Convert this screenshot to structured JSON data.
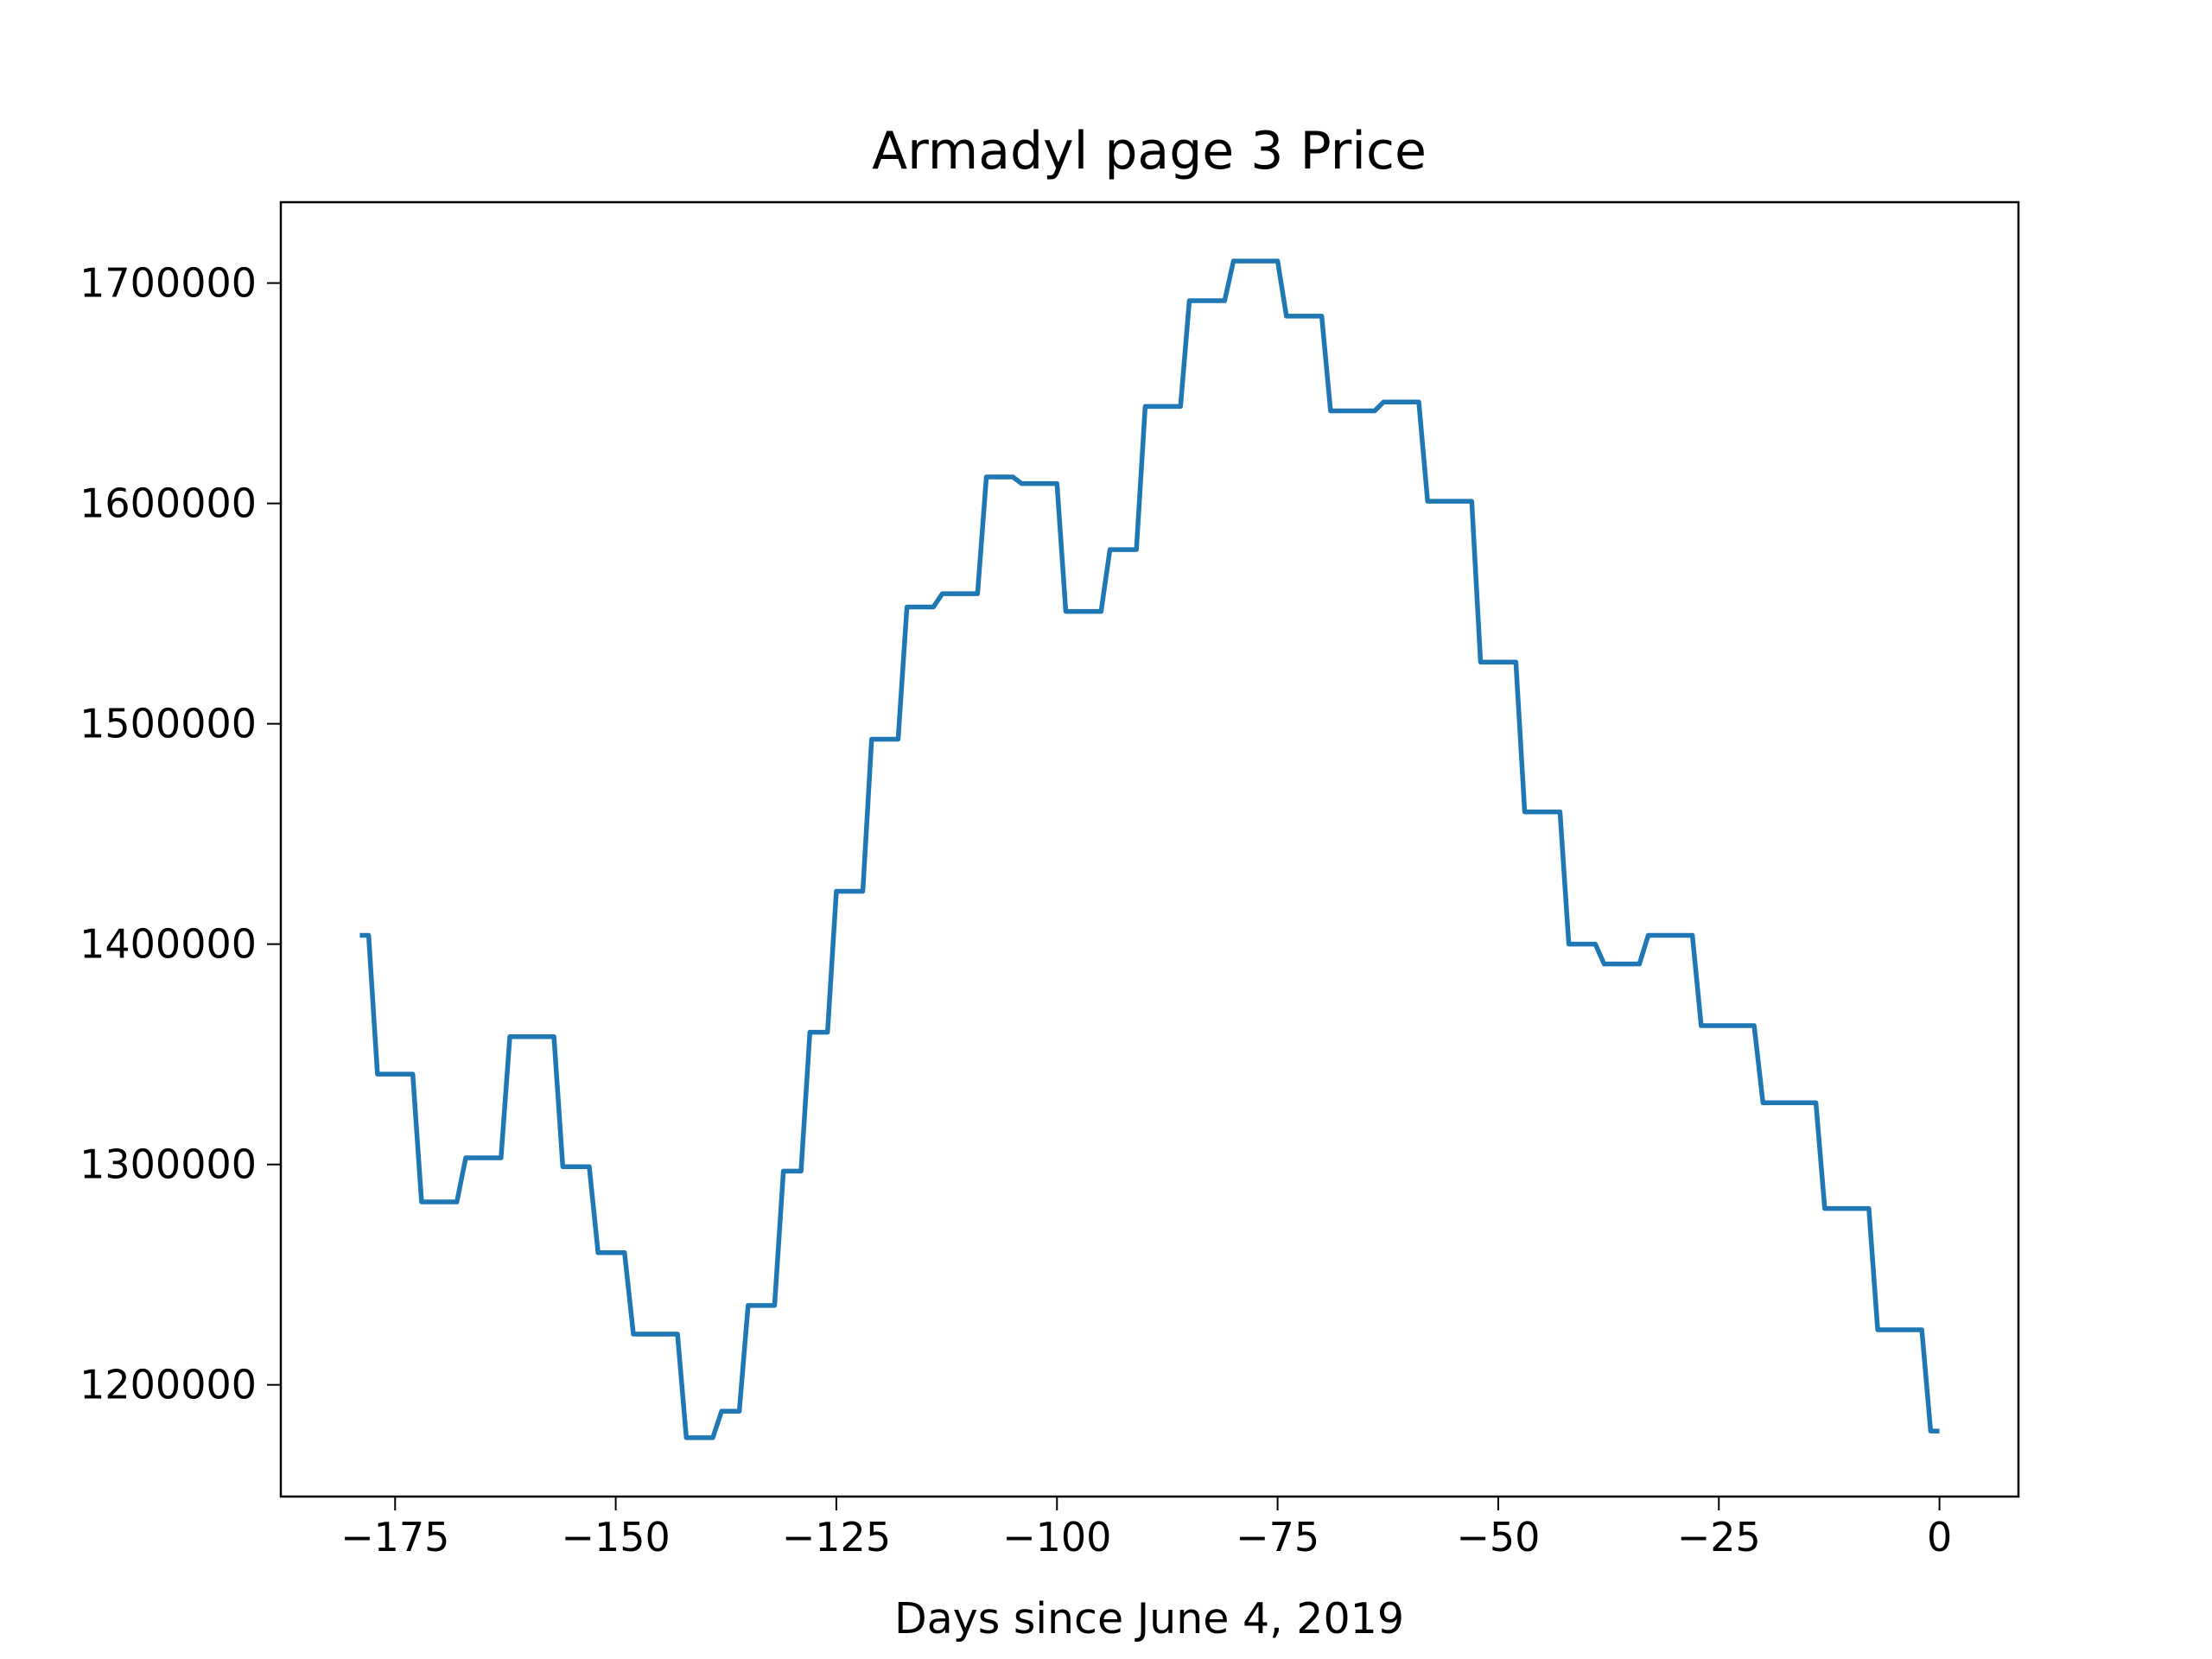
{
  "chart_data": {
    "type": "line",
    "title": "Armadyl page 3 Price",
    "x_label": "Days since June 4, 2019",
    "x": [
      -179,
      -178,
      -177,
      -173,
      -172,
      -168,
      -167,
      -163,
      -162,
      -157,
      -156,
      -153,
      -152,
      -149,
      -148,
      -143,
      -142,
      -139,
      -138,
      -136,
      -135,
      -132,
      -131,
      -129,
      -128,
      -126,
      -125,
      -122,
      -121,
      -118,
      -117,
      -114,
      -113,
      -109,
      -108,
      -105,
      -104,
      -100,
      -99,
      -95,
      -94,
      -91,
      -90,
      -86,
      -85,
      -81,
      -80,
      -75,
      -74,
      -70,
      -69,
      -64,
      -63,
      -59,
      -58,
      -53,
      -52,
      -48,
      -47,
      -43,
      -42,
      -39,
      -38,
      -34,
      -33,
      -28,
      -27,
      -21,
      -20,
      -14,
      -13,
      -8,
      -7,
      -2,
      -1,
      0
    ],
    "series": [
      {
        "name": "Price",
        "color": "#1f77b4",
        "values": [
          1404000,
          1404000,
          1341000,
          1341000,
          1283000,
          1283000,
          1303000,
          1303000,
          1358000,
          1358000,
          1299000,
          1299000,
          1260000,
          1260000,
          1223000,
          1223000,
          1176000,
          1176000,
          1188000,
          1188000,
          1236000,
          1236000,
          1297000,
          1297000,
          1360000,
          1360000,
          1424000,
          1424000,
          1493000,
          1493000,
          1553000,
          1553000,
          1559000,
          1559000,
          1612000,
          1612000,
          1609000,
          1609000,
          1551000,
          1551000,
          1579000,
          1579000,
          1644000,
          1644000,
          1692000,
          1692000,
          1710000,
          1710000,
          1685000,
          1685000,
          1642000,
          1642000,
          1646000,
          1646000,
          1601000,
          1601000,
          1528000,
          1528000,
          1460000,
          1460000,
          1400000,
          1400000,
          1391000,
          1391000,
          1404000,
          1404000,
          1363000,
          1363000,
          1328000,
          1328000,
          1280000,
          1280000,
          1225000,
          1225000,
          1179000,
          1179000
        ]
      }
    ],
    "xlim": [
      -187.95,
      8.95
    ],
    "ylim": [
      1149300,
      1736700
    ],
    "xticks": [
      {
        "value": -175,
        "label": "−175"
      },
      {
        "value": -150,
        "label": "−150"
      },
      {
        "value": -125,
        "label": "−125"
      },
      {
        "value": -100,
        "label": "−100"
      },
      {
        "value": -75,
        "label": "−75"
      },
      {
        "value": -50,
        "label": "−50"
      },
      {
        "value": -25,
        "label": "−25"
      },
      0
    ],
    "yticks": [
      1200000,
      1300000,
      1400000,
      1500000,
      1600000,
      1700000
    ],
    "grid": false
  }
}
